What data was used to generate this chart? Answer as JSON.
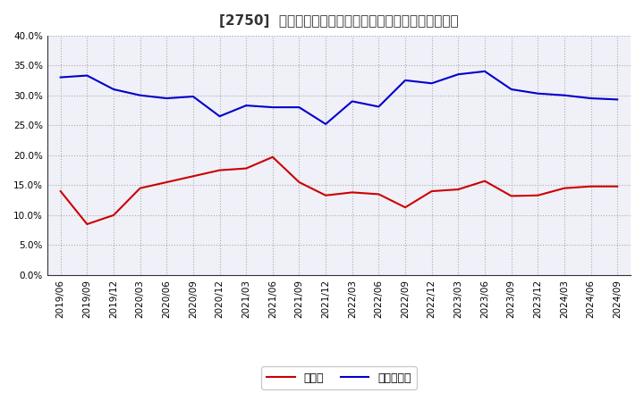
{
  "title": "[2750]  現預金、有利子負債の総資産に対する比率の推移",
  "x_labels": [
    "2019/06",
    "2019/09",
    "2019/12",
    "2020/03",
    "2020/06",
    "2020/09",
    "2020/12",
    "2021/03",
    "2021/06",
    "2021/09",
    "2021/12",
    "2022/03",
    "2022/06",
    "2022/09",
    "2022/12",
    "2023/03",
    "2023/06",
    "2023/09",
    "2023/12",
    "2024/03",
    "2024/06",
    "2024/09"
  ],
  "genkin": [
    0.14,
    0.085,
    0.1,
    0.145,
    0.155,
    0.165,
    0.175,
    0.178,
    0.197,
    0.155,
    0.133,
    0.138,
    0.135,
    0.113,
    0.14,
    0.143,
    0.157,
    0.132,
    0.133,
    0.145,
    0.148,
    0.148
  ],
  "yurishifusai": [
    0.33,
    0.333,
    0.31,
    0.3,
    0.295,
    0.298,
    0.265,
    0.283,
    0.28,
    0.28,
    0.252,
    0.29,
    0.281,
    0.325,
    0.32,
    0.335,
    0.34,
    0.31,
    0.303,
    0.3,
    0.295,
    0.293
  ],
  "genkin_color": "#cc0000",
  "yurishifusai_color": "#0000cc",
  "background_color": "#ffffff",
  "plot_bg_color": "#f0f0f8",
  "grid_color": "#aaaaaa",
  "ylim": [
    0.0,
    0.4
  ],
  "yticks": [
    0.0,
    0.05,
    0.1,
    0.15,
    0.2,
    0.25,
    0.3,
    0.35,
    0.4
  ],
  "legend_genkin": "現預金",
  "legend_yurishifusai": "有利子負債",
  "title_fontsize": 11,
  "tick_fontsize": 7.5,
  "legend_fontsize": 9
}
